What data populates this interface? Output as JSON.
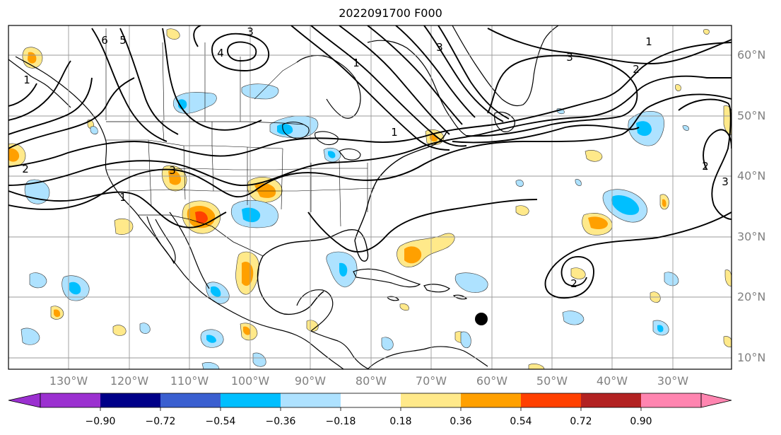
{
  "title": "2022091700 F000",
  "lat_labels": [
    "60°N",
    "50°N",
    "40°N",
    "30°N",
    "20°N",
    "10°N"
  ],
  "lon_labels": [
    "130°W",
    "120°W",
    "110°W",
    "100°W",
    "90°W",
    "80°W",
    "70°W",
    "60°W",
    "50°W",
    "40°W",
    "30°W"
  ],
  "colorbar": {
    "ticks": [
      "−0.90",
      "−0.72",
      "−0.54",
      "−0.36",
      "−0.18",
      "0.18",
      "0.36",
      "0.54",
      "0.72",
      "0.90"
    ],
    "colors": [
      "#9b30d0",
      "#000088",
      "#3a5fd0",
      "#00bfff",
      "#aee2ff",
      "#ffffff",
      "#ffe98a",
      "#ffa000",
      "#ff4000",
      "#b22222",
      "#ff85b0"
    ]
  },
  "contour_labels": [
    "6",
    "5",
    "3",
    "4",
    "1",
    "1",
    "3",
    "2",
    "1",
    "3",
    "2",
    "3",
    "1",
    "2",
    "2",
    "3",
    "1"
  ],
  "map_colors": {
    "positive_light": "#ffe98a",
    "positive_mid": "#ffa000",
    "negative_light": "#aee2ff",
    "negative_mid": "#00bfff",
    "contour": "#000000",
    "gridline": "#9a9a9a"
  }
}
